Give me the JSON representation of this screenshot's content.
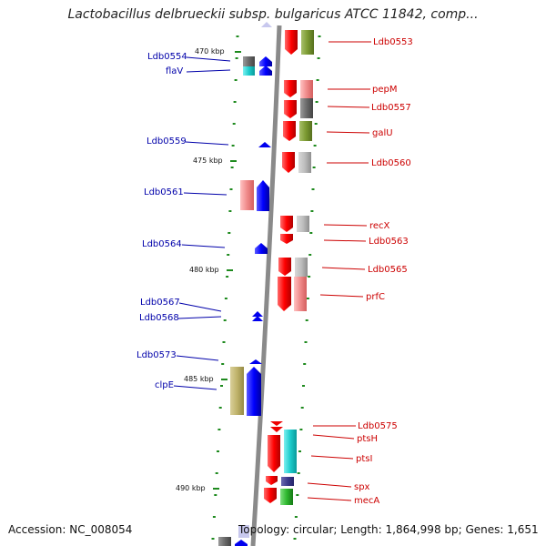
{
  "title": "Lactobacillus delbrueckii subsp. bulgaricus ATCC 11842, comp...",
  "footer": {
    "accession": "Accession: NC_008054",
    "summary": "Topology: circular; Length: 1,864,998 bp; Genes: 1,651"
  },
  "colors": {
    "backbone": "#8a8a8a",
    "forward_strand": "#0000ee",
    "reverse_strand": "#ee0000",
    "tick": "#1e8a1e",
    "left_label": "#0000aa",
    "right_label": "#cc0000"
  },
  "scale_labels": [
    "470 kbp",
    "475 kbp",
    "480 kbp",
    "485 kbp",
    "490 kbp"
  ],
  "left_genes": [
    "Ldb0554",
    "flaV",
    "Ldb0559",
    "Ldb0561",
    "Ldb0564",
    "Ldb0567",
    "Ldb0568",
    "Ldb0573",
    "clpE"
  ],
  "right_genes": [
    "Ldb0553",
    "pepM",
    "Ldb0557",
    "galU",
    "Ldb0560",
    "recX",
    "Ldb0563",
    "Ldb0565",
    "prfC",
    "Ldb0575",
    "ptsH",
    "ptsI",
    "spx",
    "mecA"
  ]
}
